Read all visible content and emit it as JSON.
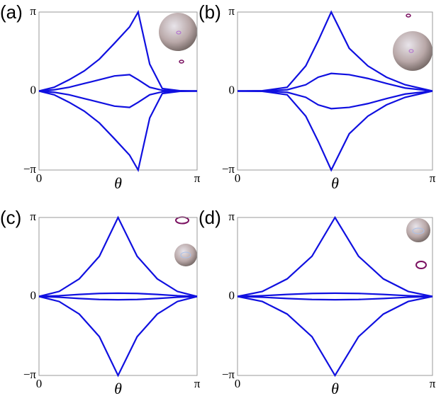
{
  "chart_data": [
    {
      "type": "line",
      "panel_label": "(a)",
      "xlabel": "θ",
      "x": [
        0,
        0.3,
        0.6,
        0.9,
        1.2,
        1.5,
        1.8,
        1.97,
        2.2,
        2.45,
        2.8,
        3.14159
      ],
      "xlim": [
        0,
        3.14159
      ],
      "ylim": [
        -3.14159,
        3.14159
      ],
      "xticks": [
        0,
        {
          "value": 3.14159,
          "label": "π"
        }
      ],
      "yticks": [
        {
          "value": -3.14159,
          "label": "−π"
        },
        0,
        {
          "value": 3.14159,
          "label": "π"
        }
      ],
      "series": [
        {
          "color": "#1010e0",
          "values": [
            0,
            0.15,
            0.45,
            0.8,
            1.27,
            1.9,
            2.55,
            3.14159,
            1.07,
            0.1,
            0.01,
            0
          ]
        },
        {
          "color": "#1010e0",
          "values": [
            0,
            0.05,
            0.15,
            0.3,
            0.45,
            0.6,
            0.65,
            0.45,
            0.15,
            0.03,
            0,
            0
          ]
        },
        {
          "color": "#1010e0",
          "values": [
            0,
            -0.05,
            -0.15,
            -0.3,
            -0.45,
            -0.6,
            -0.65,
            -0.45,
            -0.15,
            -0.03,
            0,
            0
          ]
        },
        {
          "color": "#1010e0",
          "values": [
            0,
            -0.15,
            -0.45,
            -0.8,
            -1.27,
            -1.9,
            -2.55,
            -3.14159,
            -1.07,
            -0.1,
            -0.01,
            0
          ]
        }
      ]
    },
    {
      "type": "line",
      "panel_label": "(b)",
      "xlabel": "θ",
      "x": [
        0,
        0.4,
        0.8,
        1.1,
        1.3,
        1.51,
        1.8,
        2.1,
        2.4,
        2.7,
        3.14159
      ],
      "xlim": [
        0,
        3.14159
      ],
      "ylim": [
        -3.14159,
        3.14159
      ],
      "xticks": [
        0,
        {
          "value": 3.14159,
          "label": "π"
        }
      ],
      "yticks": [
        {
          "value": -3.14159,
          "label": "−π"
        },
        0,
        {
          "value": 3.14159,
          "label": "π"
        }
      ],
      "series": [
        {
          "color": "#1010e0",
          "values": [
            0,
            0.01,
            0.15,
            1.0,
            2.0,
            3.14159,
            1.7,
            1.0,
            0.55,
            0.25,
            0
          ]
        },
        {
          "color": "#1010e0",
          "values": [
            0,
            0,
            0.05,
            0.25,
            0.55,
            0.7,
            0.65,
            0.5,
            0.3,
            0.12,
            0
          ]
        },
        {
          "color": "#1010e0",
          "values": [
            0,
            0,
            -0.05,
            -0.25,
            -0.55,
            -0.7,
            -0.65,
            -0.5,
            -0.3,
            -0.12,
            0
          ]
        },
        {
          "color": "#1010e0",
          "values": [
            0,
            -0.01,
            -0.15,
            -1.0,
            -2.0,
            -3.14159,
            -1.7,
            -1.0,
            -0.55,
            -0.25,
            0
          ]
        }
      ]
    },
    {
      "type": "line",
      "panel_label": "(c)",
      "xlabel": "θ",
      "x": [
        0,
        0.4,
        0.8,
        1.2,
        1.5708,
        1.95,
        2.35,
        2.75,
        3.14159
      ],
      "xlim": [
        0,
        3.14159
      ],
      "ylim": [
        -3.14159,
        3.14159
      ],
      "xticks": [
        0,
        {
          "value": 3.14159,
          "label": "π"
        }
      ],
      "yticks": [
        {
          "value": -3.14159,
          "label": "−π"
        },
        0,
        {
          "value": 3.14159,
          "label": "π"
        }
      ],
      "series": [
        {
          "color": "#1010e0",
          "values": [
            0,
            0.2,
            0.7,
            1.6,
            3.14159,
            1.6,
            0.7,
            0.2,
            0
          ]
        },
        {
          "color": "#1010e0",
          "values": [
            0,
            0.03,
            0.08,
            0.12,
            0.13,
            0.12,
            0.08,
            0.03,
            0
          ]
        },
        {
          "color": "#1010e0",
          "values": [
            0,
            -0.03,
            -0.08,
            -0.12,
            -0.13,
            -0.12,
            -0.08,
            -0.03,
            0
          ]
        },
        {
          "color": "#1010e0",
          "values": [
            0,
            -0.2,
            -0.7,
            -1.6,
            -3.14159,
            -1.6,
            -0.7,
            -0.2,
            0
          ]
        }
      ]
    },
    {
      "type": "line",
      "panel_label": "(d)",
      "xlabel": "θ",
      "x": [
        0,
        0.4,
        0.8,
        1.2,
        1.5708,
        1.95,
        2.35,
        2.75,
        3.14159
      ],
      "xlim": [
        0,
        3.14159
      ],
      "ylim": [
        -3.14159,
        3.14159
      ],
      "xticks": [
        0,
        {
          "value": 3.14159,
          "label": "π"
        }
      ],
      "yticks": [
        {
          "value": -3.14159,
          "label": "−π"
        },
        0,
        {
          "value": 3.14159,
          "label": "π"
        }
      ],
      "series": [
        {
          "color": "#1010e0",
          "values": [
            0,
            0.2,
            0.7,
            1.6,
            3.14159,
            1.6,
            0.7,
            0.2,
            0
          ]
        },
        {
          "color": "#1010e0",
          "values": [
            0,
            0.03,
            0.08,
            0.12,
            0.13,
            0.12,
            0.08,
            0.03,
            0
          ]
        },
        {
          "color": "#1010e0",
          "values": [
            0,
            -0.03,
            -0.08,
            -0.12,
            -0.13,
            -0.12,
            -0.08,
            -0.03,
            0
          ]
        },
        {
          "color": "#1010e0",
          "values": [
            0,
            -0.2,
            -0.7,
            -1.6,
            -3.14159,
            -1.6,
            -0.7,
            -0.2,
            0
          ]
        }
      ]
    }
  ]
}
